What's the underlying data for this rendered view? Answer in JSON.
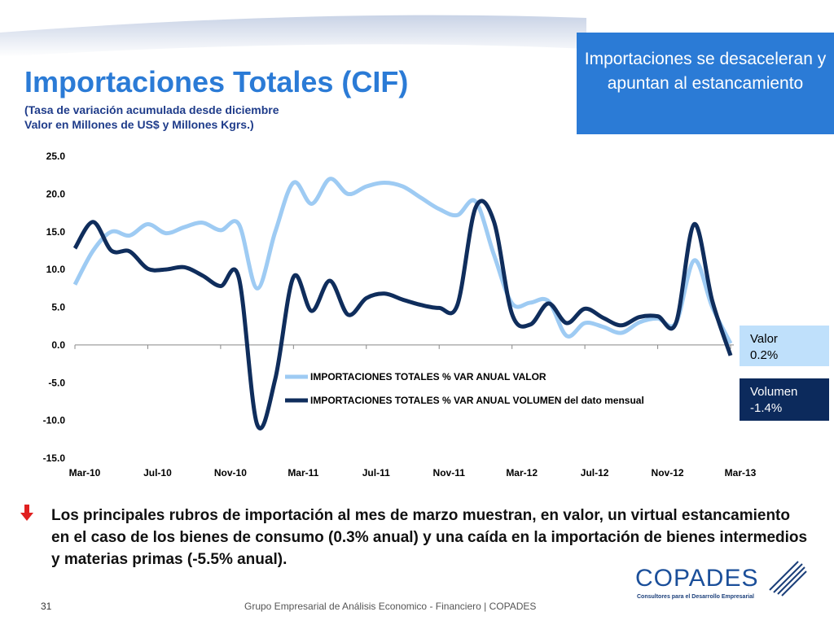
{
  "header": {
    "title": "Importaciones Totales (CIF)",
    "subtitle_lines": [
      "(Tasa de variación acumulada desde diciembre",
      "Valor en Millones de US$ y Millones Kgrs.)"
    ]
  },
  "highlight_box": "Importaciones se desaceleran y apuntan al estancamiento",
  "chart_data": {
    "type": "line",
    "categories": [
      "Mar-10",
      null,
      null,
      null,
      "Jul-10",
      null,
      null,
      null,
      "Nov-10",
      null,
      null,
      null,
      "Mar-11",
      null,
      null,
      null,
      "Jul-11",
      null,
      null,
      null,
      "Nov-11",
      null,
      null,
      null,
      "Mar-12",
      null,
      null,
      null,
      "Jul-12",
      null,
      null,
      null,
      "Nov-12",
      null,
      null,
      null,
      "Mar-13"
    ],
    "series": [
      {
        "name": "IMPORTACIONES TOTALES % VAR ANUAL VALOR",
        "color": "#9ecbf3",
        "values": [
          8.0,
          12.5,
          15.0,
          14.5,
          16.0,
          14.8,
          15.6,
          16.2,
          15.2,
          16.0,
          7.5,
          15.0,
          21.5,
          18.7,
          22.0,
          20.0,
          21.0,
          21.5,
          21.0,
          19.5,
          18.0,
          17.2,
          19.0,
          12.0,
          5.5,
          5.6,
          5.8,
          1.2,
          2.9,
          2.4,
          1.6,
          3.0,
          3.5,
          2.9,
          11.2,
          5.0,
          0.2
        ]
      },
      {
        "name": "IMPORTACIONES TOTALES % VAR ANUAL VOLUMEN del dato mensual",
        "color": "#0f2d5c",
        "values": [
          12.8,
          16.3,
          12.5,
          12.4,
          10.1,
          10.0,
          10.3,
          9.2,
          7.8,
          8.9,
          -10.5,
          -4.5,
          9.0,
          4.5,
          8.5,
          4.0,
          6.2,
          6.8,
          6.0,
          5.3,
          4.9,
          5.3,
          18.2,
          16.4,
          4.1,
          2.7,
          5.5,
          2.9,
          4.8,
          3.6,
          2.6,
          3.7,
          3.8,
          2.9,
          16.0,
          5.8,
          -1.4
        ]
      }
    ],
    "ylim": [
      -15,
      25
    ],
    "yticks": [
      {
        "value": -15,
        "label": "-15.0"
      },
      {
        "value": -10,
        "label": "-10.0"
      },
      {
        "value": -5,
        "label": "-5.0"
      },
      {
        "value": 0,
        "label": "0.0"
      },
      {
        "value": 5,
        "label": "5.0"
      },
      {
        "value": 10,
        "label": "10.0"
      },
      {
        "value": 15,
        "label": "15.0"
      },
      {
        "value": 20,
        "label": "20.0"
      },
      {
        "value": 25,
        "label": "25.0"
      }
    ],
    "grid": false,
    "callouts": [
      {
        "name": "Valor",
        "value_label": "0.2%"
      },
      {
        "name": "Volumen",
        "value_label": "-1.4%"
      }
    ]
  },
  "bullet": "Los principales rubros de importación al mes de marzo muestran, en valor, un virtual estancamiento en el caso de los bienes de consumo (0.3% anual) y una caída en la importación de bienes intermedios y materias primas (-5.5% anual).",
  "footer": {
    "page": "31",
    "text": "Grupo Empresarial de Análisis Economico - Financiero | COPADES"
  },
  "logo": {
    "name": "COPADES",
    "tagline": "Consultores para el Desarrollo Empresarial"
  }
}
